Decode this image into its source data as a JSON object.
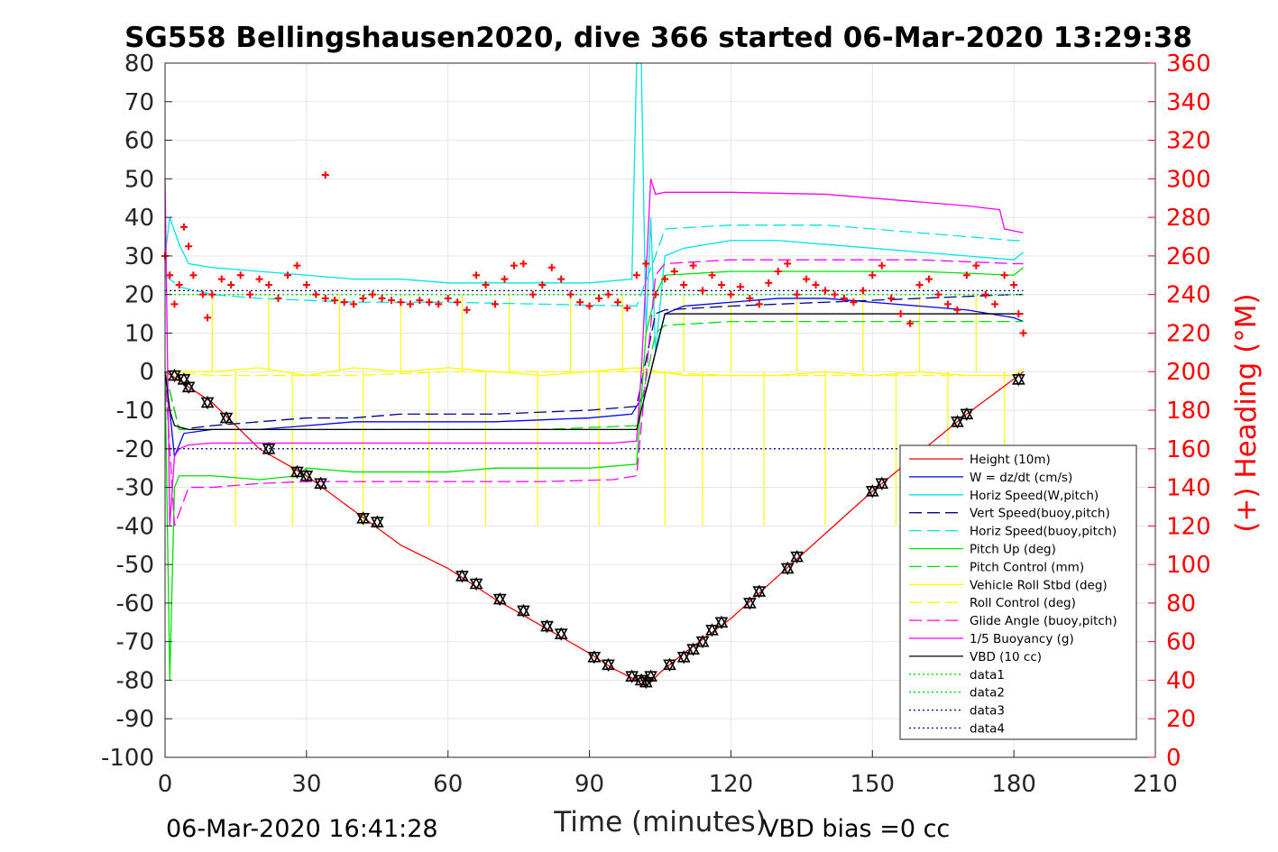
{
  "chart_data": {
    "type": "line",
    "title": "SG558 Bellingshausen2020, dive 366 started 06-Mar-2020 13:29:38",
    "xlabel": "Time (minutes)",
    "ylabel_right": "(+) Heading (°M)",
    "xlim": [
      0,
      210
    ],
    "ylim": [
      -100,
      80
    ],
    "ylim_right": [
      0,
      360
    ],
    "x_ticks": [
      0,
      30,
      60,
      90,
      120,
      150,
      180,
      210
    ],
    "y_ticks": [
      80,
      70,
      60,
      50,
      40,
      30,
      20,
      10,
      0,
      -10,
      -20,
      -30,
      -40,
      -50,
      -60,
      -70,
      -80,
      -90,
      -100
    ],
    "y_ticks_right": [
      360,
      340,
      320,
      300,
      280,
      260,
      240,
      220,
      200,
      180,
      160,
      140,
      120,
      100,
      80,
      60,
      40,
      20,
      0
    ],
    "grid": true,
    "legend_position": "lower-right",
    "footer_left": "06-Mar-2020 16:41:28",
    "footer_right": "VBD bias =0 cc",
    "colors": {
      "red": "#ff0000",
      "blue": "#0000ff",
      "cyan": "#00e5e5",
      "darkblue": "#00008b",
      "green": "#00e000",
      "yellow": "#ffff00",
      "magenta": "#ff00ff",
      "black": "#000000"
    },
    "series": [
      {
        "name": "Height (10m)",
        "color": "#ff0000",
        "style": "solid",
        "x": [
          0,
          2,
          5,
          10,
          20,
          30,
          40,
          50,
          60,
          70,
          80,
          90,
          95,
          100,
          103,
          105,
          110,
          120,
          130,
          140,
          150,
          160,
          170,
          181,
          182
        ],
        "y": [
          0,
          -1.5,
          -4,
          -8,
          -20,
          -27,
          -36,
          -45,
          -51,
          -59,
          -66,
          -73,
          -77,
          -80,
          -80.5,
          -78,
          -73,
          -64,
          -53,
          -42,
          -31,
          -21,
          -11,
          -1,
          0
        ]
      },
      {
        "name": "W = dz/dt (cm/s)",
        "color": "#0000ff",
        "style": "solid",
        "x": [
          0,
          1,
          2,
          4,
          10,
          20,
          30,
          40,
          50,
          60,
          70,
          80,
          90,
          99,
          100,
          102,
          104,
          106,
          110,
          120,
          130,
          140,
          150,
          160,
          170,
          180,
          182
        ],
        "y": [
          0,
          -10,
          -22,
          -16,
          -15,
          -15,
          -14,
          -13,
          -13,
          -13,
          -13,
          -12.5,
          -12,
          -11,
          -9,
          -5,
          5,
          15,
          17,
          18,
          19,
          19,
          18,
          17,
          16,
          14,
          13
        ]
      },
      {
        "name": "Horiz Speed(W,pitch)",
        "color": "#00e5e5",
        "style": "solid",
        "x": [
          0,
          1,
          3,
          5,
          10,
          20,
          30,
          40,
          50,
          60,
          70,
          80,
          90,
          99,
          100,
          101,
          102,
          103,
          104,
          106,
          110,
          120,
          130,
          140,
          150,
          160,
          170,
          180,
          182
        ],
        "y": [
          30,
          40,
          33,
          28,
          27,
          26,
          25,
          24,
          24,
          23,
          23,
          23,
          23,
          24,
          80,
          80,
          10,
          40,
          5,
          30,
          32,
          34,
          34,
          33,
          32,
          31,
          30,
          29,
          31
        ]
      },
      {
        "name": "Vert Speed(buoy,pitch)",
        "color": "#00008b",
        "style": "dashed",
        "x": [
          0,
          3,
          10,
          20,
          30,
          40,
          50,
          60,
          70,
          80,
          90,
          100,
          104,
          106,
          120,
          140,
          160,
          180,
          182
        ],
        "y": [
          0,
          -15,
          -14,
          -13,
          -12,
          -12,
          -11,
          -11,
          -11,
          -10.5,
          -10,
          -9,
          15,
          16,
          17,
          18,
          19,
          20,
          20
        ]
      },
      {
        "name": "Horiz Speed(buoy,pitch)",
        "color": "#00e5e5",
        "style": "dashed",
        "x": [
          0,
          3,
          10,
          20,
          30,
          40,
          60,
          80,
          100,
          104,
          106,
          120,
          140,
          160,
          180,
          182
        ],
        "y": [
          25,
          22,
          20,
          19,
          18.5,
          18,
          18,
          17.5,
          17,
          30,
          37,
          38,
          38,
          36,
          34,
          34
        ]
      },
      {
        "name": "Pitch Up (deg)",
        "color": "#00e000",
        "style": "solid",
        "x": [
          0,
          1,
          2,
          3,
          10,
          20,
          28,
          30,
          40,
          50,
          60,
          70,
          80,
          90,
          100,
          102,
          104,
          106,
          120,
          140,
          160,
          180,
          182
        ],
        "y": [
          0,
          -80,
          -30,
          -27,
          -27,
          -28,
          -27,
          -25,
          -26,
          -26,
          -26,
          -25,
          -25,
          -25,
          -24,
          10,
          20,
          25,
          26,
          26,
          26,
          25,
          27
        ]
      },
      {
        "name": "Pitch Control (mm)",
        "color": "#00e000",
        "style": "dashed",
        "x": [
          0,
          3,
          10,
          20,
          30,
          40,
          60,
          80,
          100,
          104,
          106,
          120,
          140,
          160,
          180,
          182
        ],
        "y": [
          0,
          -15,
          -15,
          -15,
          -15,
          -15,
          -15,
          -15,
          -14,
          10,
          12,
          13,
          13,
          13,
          13,
          13
        ]
      },
      {
        "name": "Vehicle Roll Stbd (deg)",
        "color": "#ffff00",
        "style": "solid",
        "x": [
          0,
          3,
          10,
          20,
          30,
          40,
          50,
          60,
          70,
          80,
          90,
          100,
          105,
          110,
          120,
          130,
          140,
          150,
          160,
          170,
          180,
          182
        ],
        "y": [
          0,
          0,
          0,
          1,
          -1,
          1,
          0,
          1,
          0,
          -1,
          0,
          1,
          0,
          -1,
          -1,
          -1,
          0,
          -1,
          0,
          -1,
          -1,
          1
        ]
      },
      {
        "name": "Roll Control (deg)",
        "color": "#ffff00",
        "style": "dashed",
        "x": [
          0,
          10,
          20,
          40,
          60,
          80,
          100,
          120,
          140,
          160,
          180,
          182
        ],
        "y": [
          0,
          -1,
          -1,
          -1,
          0,
          0,
          0,
          -1,
          -1,
          -1,
          -1,
          -1
        ]
      },
      {
        "name": "Glide Angle (buoy,pitch)",
        "color": "#ff00ff",
        "style": "dashed",
        "x": [
          0,
          2,
          5,
          10,
          20,
          30,
          40,
          60,
          80,
          95,
          100,
          104,
          106,
          120,
          140,
          160,
          180,
          182
        ],
        "y": [
          0,
          -40,
          -30,
          -30,
          -29,
          -28.5,
          -28.5,
          -28.5,
          -28.5,
          -28,
          -27,
          25,
          28,
          29,
          29,
          29,
          28,
          28
        ]
      },
      {
        "name": "1/5 Buoyancy (g)",
        "color": "#ff00ff",
        "style": "solid",
        "x": [
          0,
          1,
          2,
          3,
          5,
          10,
          20,
          30,
          40,
          60,
          80,
          95,
          100,
          101,
          103,
          104,
          106,
          120,
          140,
          160,
          170,
          177,
          178,
          182
        ],
        "y": [
          50,
          -40,
          -22,
          -20,
          -19,
          -18.5,
          -18.5,
          -18.5,
          -18.5,
          -18.5,
          -18.5,
          -18.5,
          -18,
          0,
          50,
          46,
          46.5,
          46.5,
          46,
          44,
          43,
          42,
          37,
          36
        ]
      },
      {
        "name": "VBD (10 cc)",
        "color": "#000000",
        "style": "solid",
        "x": [
          0,
          1,
          2,
          5,
          10,
          20,
          30,
          40,
          60,
          80,
          100,
          101,
          104,
          106,
          120,
          140,
          160,
          180,
          182
        ],
        "y": [
          0,
          -10,
          -14,
          -15,
          -15,
          -15,
          -15,
          -15,
          -15,
          -15,
          -15,
          -10,
          5,
          15,
          15,
          15,
          15,
          15,
          15
        ]
      },
      {
        "name": "data1",
        "color": "#00e000",
        "style": "dotted",
        "x": [
          0,
          182
        ],
        "y": [
          20,
          20
        ]
      },
      {
        "name": "data2",
        "color": "#00e000",
        "style": "dotted",
        "x": [
          0,
          182
        ],
        "y": [
          20,
          20
        ]
      },
      {
        "name": "data3",
        "color": "#00008b",
        "style": "dotted",
        "x": [
          0,
          182
        ],
        "y": [
          21,
          21
        ]
      },
      {
        "name": "data4",
        "color": "#00008b",
        "style": "dotted",
        "x": [
          0,
          182
        ],
        "y": [
          -20,
          -20
        ]
      }
    ],
    "heading_points": {
      "color": "#ff0000",
      "axis": "right",
      "x": [
        0,
        1,
        2,
        3,
        4,
        5,
        6,
        8,
        9,
        10,
        12,
        14,
        16,
        18,
        20,
        22,
        24,
        26,
        28,
        30,
        32,
        34,
        36,
        38,
        40,
        42,
        44,
        46,
        48,
        50,
        52,
        54,
        56,
        58,
        60,
        62,
        64,
        66,
        68,
        70,
        72,
        74,
        76,
        78,
        80,
        82,
        84,
        86,
        88,
        90,
        92,
        94,
        96,
        98,
        100,
        102,
        104,
        106,
        108,
        110,
        112,
        114,
        116,
        118,
        120,
        122,
        124,
        126,
        128,
        130,
        132,
        134,
        136,
        138,
        140,
        142,
        144,
        146,
        148,
        150,
        152,
        154,
        156,
        158,
        160,
        162,
        164,
        166,
        168,
        170,
        172,
        174,
        176,
        178,
        180,
        181,
        182
      ],
      "y": [
        260,
        250,
        235,
        245,
        275,
        265,
        250,
        240,
        228,
        240,
        248,
        245,
        250,
        240,
        248,
        245,
        238,
        250,
        255,
        245,
        240,
        238,
        237,
        236,
        235,
        238,
        240,
        238,
        237,
        236,
        235,
        237,
        236,
        235,
        238,
        236,
        232,
        250,
        245,
        235,
        248,
        255,
        256,
        240,
        245,
        254,
        248,
        240,
        236,
        234,
        238,
        240,
        236,
        233,
        250,
        256,
        240,
        248,
        252,
        245,
        255,
        242,
        250,
        245,
        240,
        244,
        238,
        235,
        246,
        252,
        256,
        240,
        248,
        245,
        242,
        240,
        238,
        236,
        242,
        250,
        255,
        238,
        230,
        225,
        245,
        248,
        240,
        235,
        232,
        250,
        255,
        240,
        235,
        250,
        245,
        230,
        220
      ],
      "outlier": {
        "x": 34,
        "y": 302
      }
    },
    "marker_points": {
      "color": "#000000",
      "style": "triangles",
      "x": [
        2,
        4,
        5,
        9,
        13,
        22,
        28,
        30,
        33,
        42,
        45,
        63,
        66,
        71,
        76,
        81,
        84,
        91,
        94,
        99,
        101,
        102,
        103,
        107,
        110,
        112,
        114,
        116,
        118,
        124,
        126,
        132,
        134,
        150,
        152,
        168,
        170,
        181
      ],
      "y": [
        -1,
        -2,
        -4,
        -8,
        -12,
        -20,
        -26,
        -27,
        -29,
        -38,
        -39,
        -53,
        -55,
        -59,
        -62,
        -66,
        -68,
        -74,
        -76,
        -79,
        -80,
        -80.5,
        -79,
        -76,
        -74,
        -72,
        -70,
        -67,
        -65,
        -60,
        -57,
        -51,
        -48,
        -31,
        -29,
        -13,
        -11,
        -2
      ]
    },
    "vertical_spikes": {
      "color": "#ffff00",
      "x": [
        10,
        15,
        22,
        27,
        37,
        42,
        50,
        56,
        63,
        68,
        73,
        79,
        86,
        92,
        97,
        106,
        110,
        114,
        120,
        127,
        134,
        140,
        148,
        155,
        160,
        166,
        172,
        178
      ]
    }
  }
}
